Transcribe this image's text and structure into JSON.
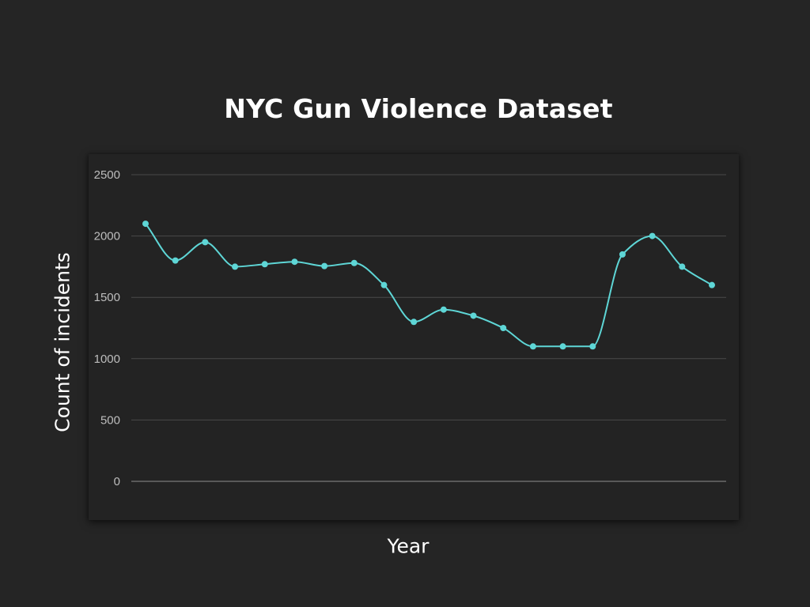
{
  "colors": {
    "background": "#252525",
    "plot_background": "#232323",
    "line": "#5ed6d6",
    "grid": "#4a4a4a",
    "text": "#ffffff",
    "tick_text": "#bdbdbd"
  },
  "chart_data": {
    "type": "line",
    "title": "NYC Gun Violence Dataset",
    "xlabel": "Year",
    "ylabel": "Count of incidents",
    "ylim": [
      0,
      2500
    ],
    "yticks": [
      0,
      500,
      1000,
      1500,
      2000,
      2500
    ],
    "grid": true,
    "smooth": true,
    "markers": true,
    "x_tick_labels_visible": false,
    "series": [
      {
        "values": [
          2100,
          1800,
          1950,
          1750,
          1770,
          1790,
          1755,
          1780,
          1600,
          1300,
          1400,
          1350,
          1250,
          1100,
          1100,
          1100,
          1850,
          2000,
          1750,
          1600
        ]
      }
    ]
  }
}
